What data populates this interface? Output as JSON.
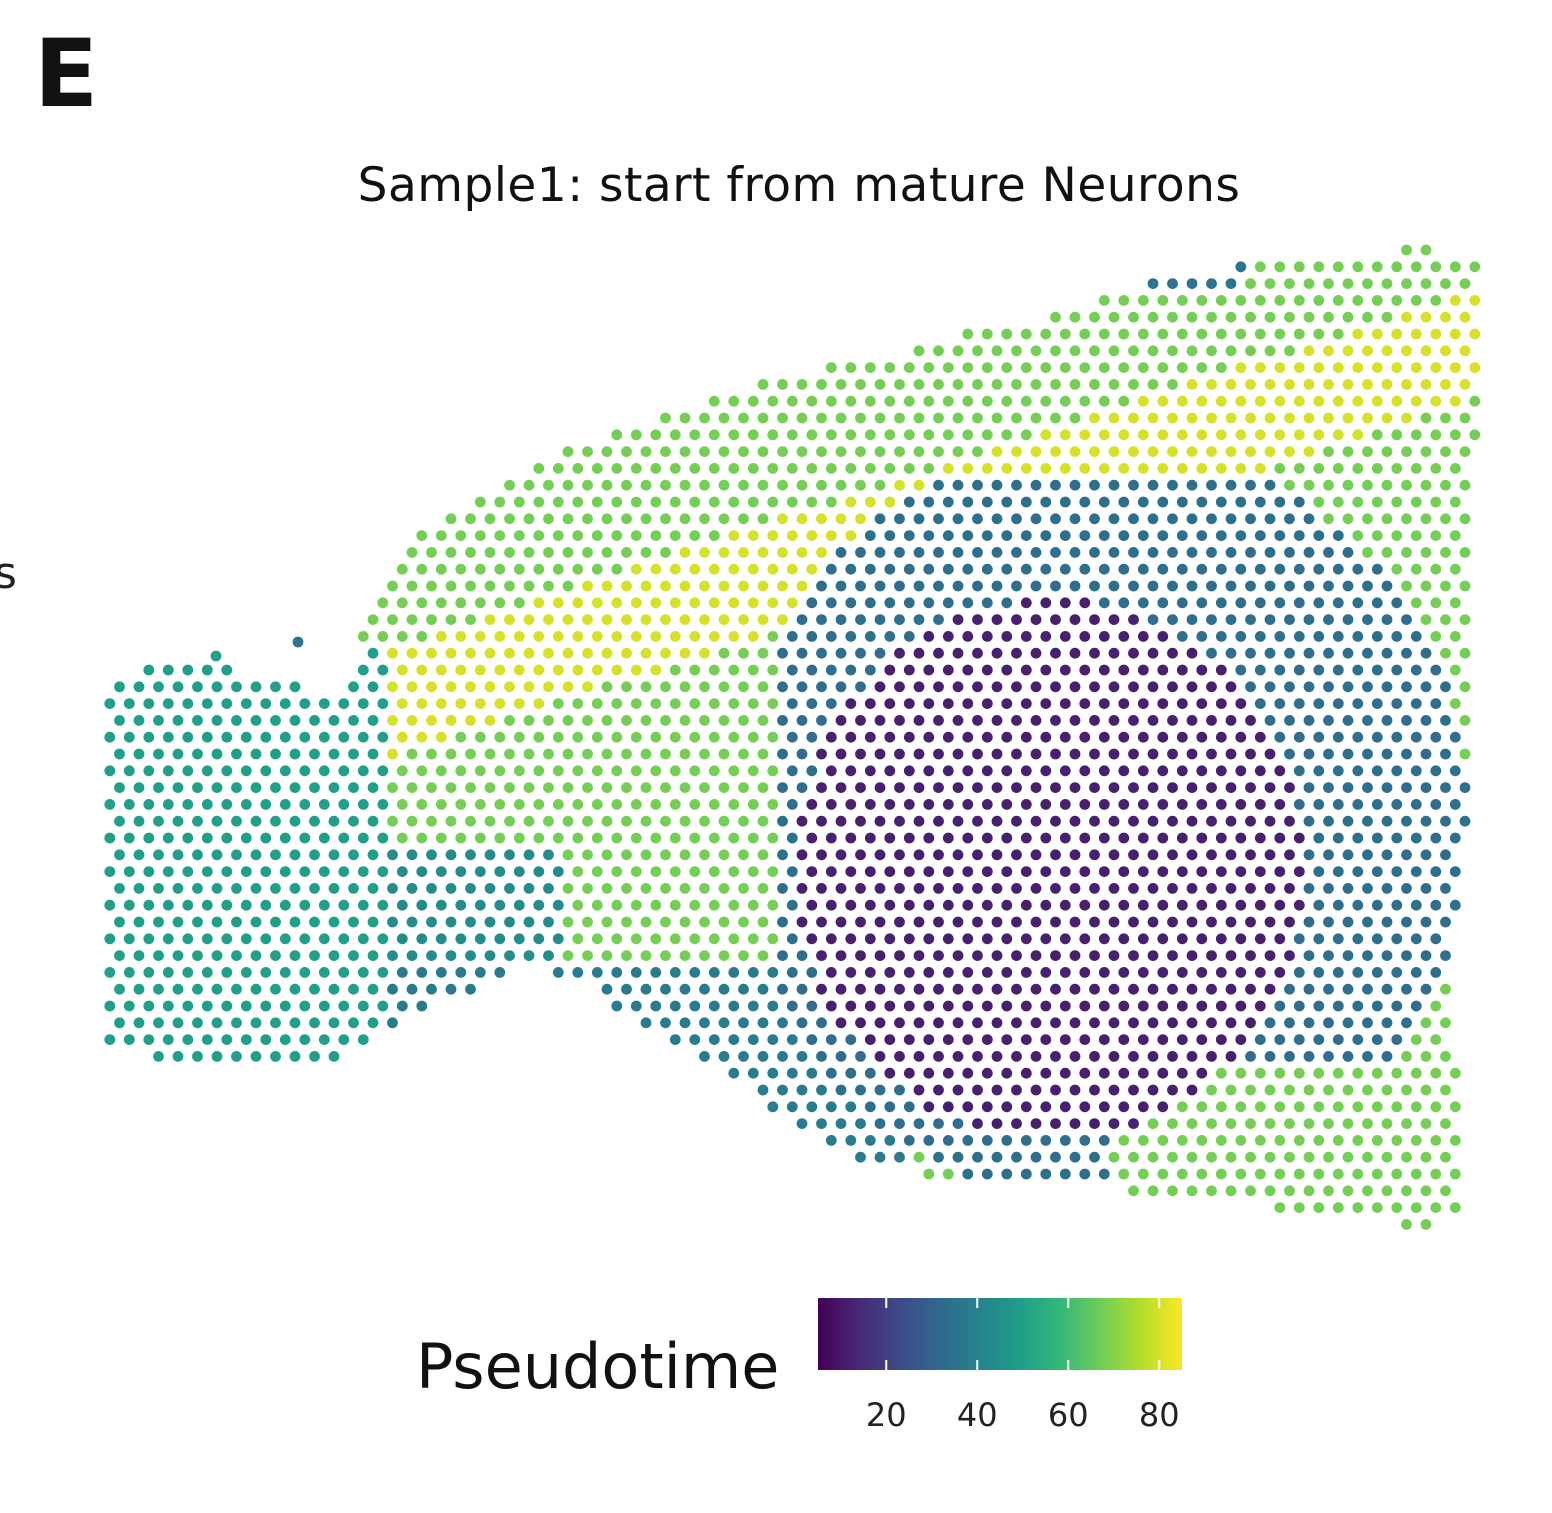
{
  "panel_letter": "E",
  "edge_fragment": "s",
  "chart_data": {
    "type": "scatter",
    "title": "Sample1: start from mature  Neurons",
    "xlabel": "",
    "ylabel": "",
    "legend": {
      "title": "Pseudotime",
      "placement": "bottom",
      "type": "colorbar",
      "ticks": [
        20,
        40,
        60,
        80
      ],
      "tick_labels": [
        "20",
        "40",
        "60",
        "80"
      ],
      "range": [
        5,
        85
      ],
      "colormap": "viridis"
    },
    "regions": [
      {
        "name": "left block",
        "pseudotime_approx": 50
      },
      {
        "name": "upper band",
        "pseudotime_approx": 70
      },
      {
        "name": "upper ridge",
        "pseudotime_approx": 80
      },
      {
        "name": "central core",
        "pseudotime_approx": 12
      },
      {
        "name": "core rim",
        "pseudotime_approx": 32
      },
      {
        "name": "outer border",
        "pseudotime_approx": 38
      },
      {
        "name": "lower-right band",
        "pseudotime_approx": 65
      }
    ]
  },
  "colors": {
    "viridis_stops": [
      "#440154",
      "#482878",
      "#3e4989",
      "#31688e",
      "#26828e",
      "#1f9e89",
      "#35b779",
      "#6ece58",
      "#b5de2b",
      "#fde725"
    ],
    "background": "#ffffff"
  }
}
